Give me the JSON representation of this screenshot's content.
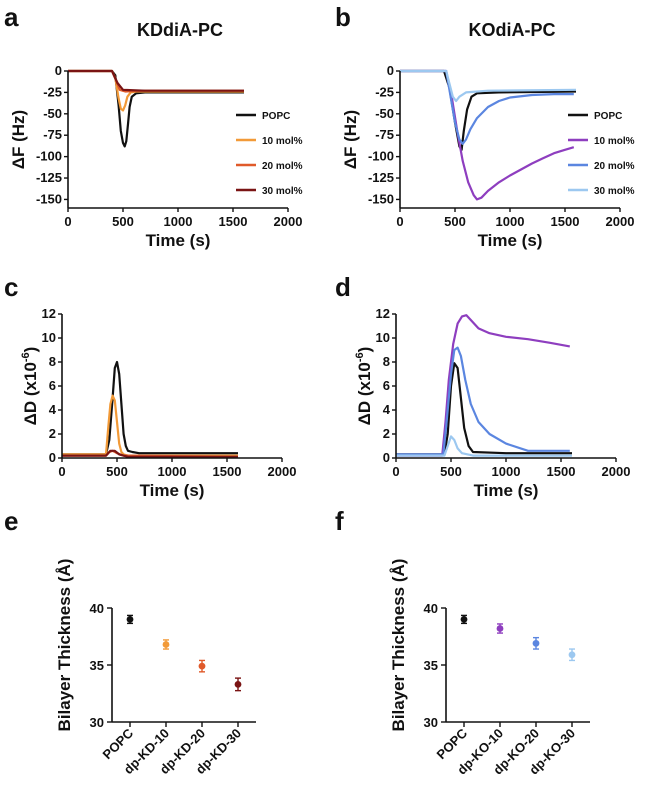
{
  "chart_data": [
    {
      "panel": "a",
      "type": "line",
      "title": "KDdiA-PC",
      "xlabel": "Time (s)",
      "ylabel": "ΔF (Hz)",
      "xlim": [
        0,
        2000
      ],
      "ylim": [
        -160,
        0
      ],
      "xticks": [
        0,
        500,
        1000,
        1500,
        2000
      ],
      "yticks": [
        0,
        -25,
        -50,
        -75,
        -100,
        -125,
        -150
      ],
      "legend": "right",
      "series": [
        {
          "name": "POPC",
          "color": "#111111",
          "x": [
            0,
            400,
            430,
            460,
            480,
            500,
            515,
            530,
            545,
            560,
            580,
            620,
            700,
            900,
            1200,
            1600
          ],
          "y": [
            0,
            0,
            -5,
            -40,
            -70,
            -84,
            -88,
            -82,
            -62,
            -42,
            -30,
            -26,
            -25,
            -25,
            -25,
            -25
          ]
        },
        {
          "name": "10 mol%",
          "color": "#F29A38",
          "x": [
            0,
            400,
            430,
            460,
            480,
            500,
            520,
            540,
            570,
            620,
            800,
            1600
          ],
          "y": [
            0,
            0,
            -8,
            -32,
            -44,
            -46,
            -40,
            -30,
            -25,
            -24,
            -24,
            -24
          ]
        },
        {
          "name": "20 mol%",
          "color": "#E05A2A",
          "x": [
            0,
            400,
            440,
            470,
            520,
            700,
            1600
          ],
          "y": [
            0,
            0,
            -12,
            -22,
            -24,
            -23,
            -23
          ]
        },
        {
          "name": "30 mol%",
          "color": "#7A1414",
          "x": [
            0,
            400,
            450,
            500,
            700,
            1600
          ],
          "y": [
            0,
            0,
            -14,
            -22,
            -23,
            -23
          ]
        }
      ]
    },
    {
      "panel": "b",
      "type": "line",
      "title": "KOdiA-PC",
      "xlabel": "Time (s)",
      "ylabel": "ΔF (Hz)",
      "xlim": [
        0,
        2000
      ],
      "ylim": [
        -160,
        0
      ],
      "xticks": [
        0,
        500,
        1000,
        1500,
        2000
      ],
      "yticks": [
        0,
        -25,
        -50,
        -75,
        -100,
        -125,
        -150
      ],
      "legend": "right",
      "series": [
        {
          "name": "POPC",
          "color": "#111111",
          "x": [
            0,
            400,
            450,
            500,
            540,
            560,
            580,
            610,
            650,
            700,
            900,
            1600
          ],
          "y": [
            0,
            0,
            -20,
            -60,
            -88,
            -92,
            -70,
            -45,
            -30,
            -26,
            -25,
            -24
          ]
        },
        {
          "name": "10 mol%",
          "color": "#8E3EBF",
          "x": [
            0,
            420,
            470,
            520,
            570,
            620,
            670,
            700,
            740,
            800,
            900,
            1000,
            1100,
            1200,
            1300,
            1400,
            1500,
            1580
          ],
          "y": [
            0,
            0,
            -30,
            -70,
            -105,
            -130,
            -145,
            -150,
            -148,
            -140,
            -130,
            -122,
            -115,
            -108,
            -102,
            -96,
            -92,
            -89
          ]
        },
        {
          "name": "20 mol%",
          "color": "#5B86E0",
          "x": [
            0,
            420,
            460,
            500,
            540,
            570,
            600,
            640,
            700,
            800,
            900,
            1000,
            1200,
            1400,
            1580
          ],
          "y": [
            0,
            0,
            -30,
            -60,
            -80,
            -85,
            -80,
            -68,
            -55,
            -42,
            -35,
            -31,
            -28,
            -27,
            -27
          ]
        },
        {
          "name": "30 mol%",
          "color": "#9CC8F0",
          "x": [
            0,
            420,
            450,
            480,
            510,
            540,
            600,
            800,
            1600
          ],
          "y": [
            0,
            0,
            -15,
            -30,
            -35,
            -30,
            -25,
            -23,
            -22
          ]
        }
      ]
    },
    {
      "panel": "c",
      "type": "line",
      "xlabel": "Time (s)",
      "ylabel": "ΔD (x10⁻⁶)",
      "xlim": [
        0,
        2000
      ],
      "ylim": [
        0,
        12
      ],
      "xticks": [
        0,
        500,
        1000,
        1500,
        2000
      ],
      "yticks": [
        0,
        2,
        4,
        6,
        8,
        10,
        12
      ],
      "series": [
        {
          "name": "POPC",
          "color": "#111111",
          "x": [
            0,
            400,
            430,
            460,
            480,
            500,
            520,
            540,
            560,
            580,
            600,
            640,
            700,
            1000,
            1600
          ],
          "y": [
            0.3,
            0.3,
            1.5,
            5,
            7.5,
            8,
            7,
            4.5,
            2,
            1,
            0.6,
            0.5,
            0.4,
            0.4,
            0.4
          ]
        },
        {
          "name": "10 mol%",
          "color": "#F29A38",
          "x": [
            0,
            400,
            420,
            440,
            460,
            480,
            500,
            520,
            540,
            560,
            600,
            1600
          ],
          "y": [
            0.3,
            0.3,
            2.5,
            4.5,
            5.2,
            4.8,
            3,
            1.2,
            0.5,
            0.3,
            0.2,
            0.2
          ]
        },
        {
          "name": "20 mol%",
          "color": "#E05A2A",
          "x": [
            0,
            400,
            430,
            460,
            500,
            560,
            1600
          ],
          "y": [
            0.2,
            0.2,
            0.5,
            0.6,
            0.4,
            0.2,
            0.1
          ]
        },
        {
          "name": "30 mol%",
          "color": "#7A1414",
          "x": [
            0,
            400,
            440,
            480,
            520,
            600,
            1600
          ],
          "y": [
            0.2,
            0.2,
            0.6,
            0.6,
            0.3,
            0.1,
            0.1
          ]
        }
      ]
    },
    {
      "panel": "d",
      "type": "line",
      "xlabel": "Time (s)",
      "ylabel": "ΔD (x10⁻⁶)",
      "xlim": [
        0,
        2000
      ],
      "ylim": [
        0,
        12
      ],
      "xticks": [
        0,
        500,
        1000,
        1500,
        2000
      ],
      "yticks": [
        0,
        2,
        4,
        6,
        8,
        10,
        12
      ],
      "series": [
        {
          "name": "POPC",
          "color": "#111111",
          "x": [
            0,
            440,
            470,
            500,
            530,
            560,
            590,
            620,
            660,
            700,
            1000,
            1600
          ],
          "y": [
            0.3,
            0.3,
            2,
            6,
            7.9,
            7.5,
            5,
            2.5,
            1,
            0.5,
            0.4,
            0.4
          ]
        },
        {
          "name": "10 mol%",
          "color": "#8E3EBF",
          "x": [
            0,
            420,
            450,
            480,
            520,
            560,
            600,
            640,
            680,
            750,
            850,
            1000,
            1200,
            1400,
            1580
          ],
          "y": [
            0.2,
            0.2,
            3,
            6.5,
            9.5,
            11.2,
            11.8,
            11.9,
            11.5,
            10.8,
            10.4,
            10.1,
            9.9,
            9.6,
            9.3
          ]
        },
        {
          "name": "20 mol%",
          "color": "#5B86E0",
          "x": [
            0,
            430,
            460,
            500,
            530,
            560,
            590,
            630,
            680,
            750,
            850,
            1000,
            1200,
            1580
          ],
          "y": [
            0.3,
            0.3,
            3,
            7,
            9,
            9.2,
            8.5,
            6.5,
            4.5,
            3,
            2,
            1.2,
            0.6,
            0.6
          ]
        },
        {
          "name": "30 mol%",
          "color": "#9CC8F0",
          "x": [
            0,
            440,
            470,
            500,
            530,
            560,
            600,
            700,
            1600
          ],
          "y": [
            0.2,
            0.2,
            1,
            1.8,
            1.5,
            0.8,
            0.4,
            0.2,
            0.2
          ]
        }
      ]
    },
    {
      "panel": "e",
      "type": "scatter",
      "ylabel": "Bilayer Thickness (Å)",
      "ylim": [
        30,
        40
      ],
      "yticks": [
        30,
        35,
        40
      ],
      "categories": [
        "POPC",
        "dp-KD-10",
        "dp-KD-20",
        "dp-KD-30"
      ],
      "values": [
        39.0,
        36.8,
        34.9,
        33.3
      ],
      "errors": [
        0.35,
        0.4,
        0.5,
        0.55
      ],
      "colors": [
        "#111111",
        "#F29A38",
        "#E05A2A",
        "#7A1414"
      ]
    },
    {
      "panel": "f",
      "type": "scatter",
      "ylabel": "Bilayer Thickness (Å)",
      "ylim": [
        30,
        40
      ],
      "yticks": [
        30,
        35,
        40
      ],
      "categories": [
        "POPC",
        "dp-KO-10",
        "dp-KO-20",
        "dp-KO-30"
      ],
      "values": [
        39.0,
        38.2,
        36.9,
        35.9
      ],
      "errors": [
        0.35,
        0.4,
        0.5,
        0.5
      ],
      "colors": [
        "#111111",
        "#8E3EBF",
        "#5B86E0",
        "#9CC8F0"
      ]
    }
  ]
}
